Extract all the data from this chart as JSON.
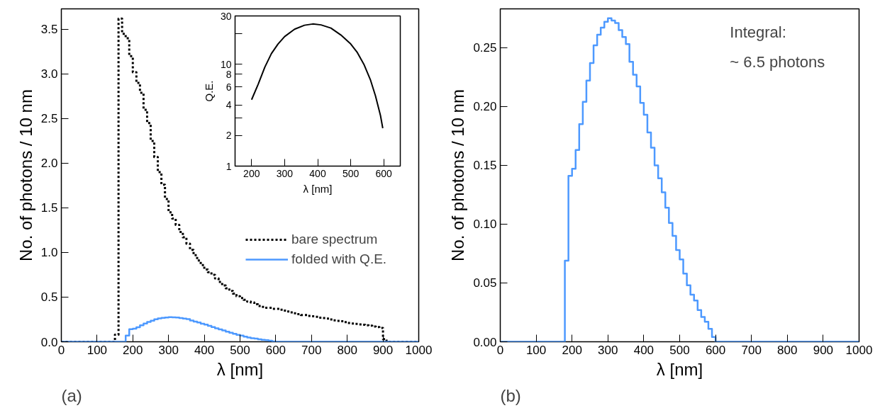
{
  "chart_data": [
    {
      "type": "histogram",
      "title": "(a)",
      "xlabel": "λ [nm]",
      "ylabel": "No. of photons / 10 nm",
      "legend": "right",
      "bins": [
        0,
        150,
        160,
        170,
        180,
        190,
        200,
        210,
        220,
        230,
        240,
        250,
        260,
        270,
        280,
        290,
        300,
        310,
        320,
        330,
        340,
        350,
        360,
        370,
        380,
        390,
        400,
        410,
        420,
        430,
        440,
        450,
        460,
        470,
        480,
        490,
        500,
        510,
        520,
        530,
        540,
        550,
        560,
        570,
        580,
        590,
        600,
        610,
        620,
        630,
        640,
        650,
        660,
        670,
        680,
        690,
        700,
        710,
        720,
        730,
        740,
        750,
        760,
        770,
        780,
        790,
        800,
        810,
        820,
        830,
        840,
        850,
        860,
        870,
        880,
        890,
        900,
        910,
        1000
      ],
      "series": [
        {
          "name": "bare spectrum",
          "color": "#000000",
          "line_style": "dotted",
          "values": [
            0,
            0.08,
            3.62,
            3.45,
            3.4,
            3.2,
            3.02,
            2.9,
            2.79,
            2.6,
            2.45,
            2.25,
            2.07,
            1.9,
            1.76,
            1.6,
            1.45,
            1.38,
            1.31,
            1.23,
            1.17,
            1.1,
            1.03,
            0.97,
            0.91,
            0.86,
            0.81,
            0.78,
            0.75,
            0.71,
            0.67,
            0.63,
            0.6,
            0.57,
            0.54,
            0.51,
            0.49,
            0.47,
            0.45,
            0.44,
            0.42,
            0.4,
            0.39,
            0.38,
            0.38,
            0.37,
            0.37,
            0.36,
            0.35,
            0.34,
            0.33,
            0.32,
            0.31,
            0.3,
            0.3,
            0.29,
            0.285,
            0.28,
            0.27,
            0.265,
            0.26,
            0.25,
            0.24,
            0.235,
            0.23,
            0.22,
            0.21,
            0.205,
            0.2,
            0.195,
            0.19,
            0.185,
            0.18,
            0.17,
            0.165,
            0.155,
            0.03,
            0
          ]
        },
        {
          "name": "folded with Q.E.",
          "color": "#4d99ff",
          "line_style": "solid",
          "values": [
            0,
            0,
            0,
            0,
            0.069,
            0.141,
            0.147,
            0.163,
            0.185,
            0.204,
            0.222,
            0.237,
            0.252,
            0.261,
            0.267,
            0.272,
            0.275,
            0.273,
            0.271,
            0.265,
            0.259,
            0.253,
            0.238,
            0.227,
            0.217,
            0.203,
            0.193,
            0.178,
            0.165,
            0.15,
            0.139,
            0.127,
            0.114,
            0.101,
            0.09,
            0.078,
            0.07,
            0.058,
            0.048,
            0.04,
            0.035,
            0.027,
            0.021,
            0.017,
            0.011,
            0.004,
            0,
            0,
            0,
            0,
            0,
            0,
            0,
            0,
            0,
            0,
            0,
            0,
            0,
            0,
            0,
            0,
            0,
            0,
            0,
            0,
            0,
            0,
            0,
            0,
            0,
            0,
            0,
            0,
            0,
            0,
            0,
            0
          ]
        }
      ],
      "xlim": [
        0,
        1000
      ],
      "xticks": [
        0,
        100,
        200,
        300,
        400,
        500,
        600,
        700,
        800,
        900,
        1000
      ],
      "ylim": [
        0,
        3.73
      ],
      "yticks": [
        {
          "value": 0,
          "label": "0.0"
        },
        {
          "value": 0.5,
          "label": "0.5"
        },
        {
          "value": 1,
          "label": "1.0"
        },
        {
          "value": 1.5,
          "label": "1.5"
        },
        {
          "value": 2,
          "label": "2.0"
        },
        {
          "value": 2.5,
          "label": "2.5"
        },
        {
          "value": 3,
          "label": "3.0"
        },
        {
          "value": 3.5,
          "label": "3.5"
        }
      ]
    },
    {
      "type": "line",
      "xlabel": "λ [nm]",
      "ylabel": "Q.E.",
      "log": "y",
      "color": "#000000",
      "x": [
        200,
        220,
        240,
        260,
        280,
        300,
        330,
        360,
        385,
        410,
        440,
        470,
        500,
        520,
        540,
        560,
        575,
        590,
        597
      ],
      "values": [
        4.5,
        6.4,
        9.4,
        12.8,
        15.9,
        18.8,
        22.2,
        24.3,
        25.0,
        24.5,
        22.8,
        19.5,
        15.9,
        13.1,
        10.0,
        7.0,
        4.9,
        3.15,
        2.36
      ],
      "xlim": [
        150,
        650
      ],
      "xticks": [
        200,
        300,
        400,
        500,
        600
      ],
      "ylim": [
        1,
        30
      ],
      "yticks": [
        1,
        2,
        {
          "value": 3,
          "label": null
        },
        4,
        6,
        8,
        10,
        {
          "value": 20,
          "label": null
        },
        30
      ]
    },
    {
      "type": "histogram",
      "title": "(b)",
      "xlabel": "λ [nm]",
      "ylabel": "No. of photons / 10 nm",
      "annotations": [
        "Integral:",
        "~ 6.5 photons"
      ],
      "bins": [
        0,
        180,
        190,
        200,
        210,
        220,
        230,
        240,
        250,
        260,
        270,
        280,
        290,
        300,
        310,
        320,
        330,
        340,
        350,
        360,
        370,
        380,
        390,
        400,
        410,
        420,
        430,
        440,
        450,
        460,
        470,
        480,
        490,
        500,
        510,
        520,
        530,
        540,
        550,
        560,
        570,
        580,
        590,
        600,
        1000
      ],
      "series": [
        {
          "color": "#4d99ff",
          "line_style": "solid",
          "values": [
            0,
            0.069,
            0.141,
            0.147,
            0.163,
            0.185,
            0.204,
            0.222,
            0.237,
            0.252,
            0.261,
            0.267,
            0.272,
            0.275,
            0.273,
            0.271,
            0.265,
            0.259,
            0.253,
            0.238,
            0.227,
            0.217,
            0.203,
            0.193,
            0.178,
            0.165,
            0.15,
            0.139,
            0.127,
            0.114,
            0.101,
            0.09,
            0.078,
            0.07,
            0.058,
            0.048,
            0.04,
            0.035,
            0.027,
            0.021,
            0.017,
            0.011,
            0.004,
            0
          ]
        }
      ],
      "xlim": [
        0,
        1000
      ],
      "xticks": [
        0,
        100,
        200,
        300,
        400,
        500,
        600,
        700,
        800,
        900,
        1000
      ],
      "ylim": [
        0,
        0.283
      ],
      "yticks": [
        {
          "value": 0,
          "label": "0.00"
        },
        {
          "value": 0.05,
          "label": "0.05"
        },
        {
          "value": 0.1,
          "label": "0.10"
        },
        {
          "value": 0.15,
          "label": "0.15"
        },
        {
          "value": 0.2,
          "label": "0.20"
        },
        {
          "value": 0.25,
          "label": "0.25"
        }
      ]
    }
  ]
}
